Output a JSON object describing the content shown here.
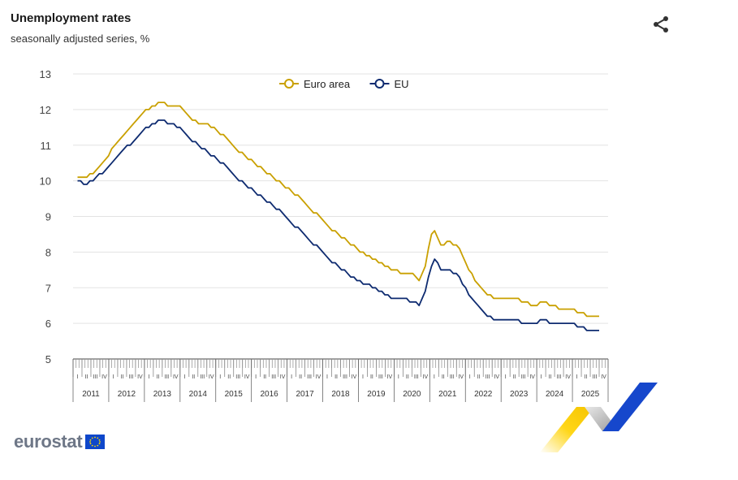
{
  "header": {
    "title": "Unemployment rates",
    "subtitle": "seasonally adjusted series, %"
  },
  "share": {
    "icon": "share-icon"
  },
  "logo": {
    "text": "eurostat"
  },
  "colors": {
    "euro_area": "#c9a000",
    "eu": "#0e2b70",
    "grid": "#e3e3e3",
    "axis": "#666666"
  },
  "chart_data": {
    "type": "line",
    "title": "Unemployment rates",
    "subtitle": "seasonally adjusted series, %",
    "ylim": [
      5,
      13
    ],
    "yticks": [
      5,
      6,
      7,
      8,
      9,
      10,
      11,
      12,
      13
    ],
    "grid": true,
    "legend": "top-center",
    "quarters": [
      "I",
      "II",
      "III",
      "IV"
    ],
    "years": [
      "2011",
      "2012",
      "2013",
      "2014",
      "2015",
      "2016",
      "2017",
      "2018",
      "2019",
      "2020",
      "2021",
      "2022",
      "2023",
      "2024",
      "2025"
    ],
    "x_start": "2011-01",
    "x_end": "2025-01",
    "series": [
      {
        "name": "Euro area",
        "color": "#c9a000",
        "anchors": [
          [
            "2011-01",
            10.1
          ],
          [
            "2011-03",
            10.1
          ],
          [
            "2011-06",
            10.2
          ],
          [
            "2011-10",
            10.6
          ],
          [
            "2012-01",
            11.0
          ],
          [
            "2012-04",
            11.3
          ],
          [
            "2012-07",
            11.6
          ],
          [
            "2012-10",
            11.9
          ],
          [
            "2013-01",
            12.1
          ],
          [
            "2013-04",
            12.2
          ],
          [
            "2013-07",
            12.1
          ],
          [
            "2013-10",
            12.1
          ],
          [
            "2014-01",
            11.8
          ],
          [
            "2014-04",
            11.6
          ],
          [
            "2014-07",
            11.6
          ],
          [
            "2014-10",
            11.4
          ],
          [
            "2015-01",
            11.2
          ],
          [
            "2015-04",
            10.9
          ],
          [
            "2015-07",
            10.7
          ],
          [
            "2015-10",
            10.5
          ],
          [
            "2016-01",
            10.3
          ],
          [
            "2016-04",
            10.1
          ],
          [
            "2016-07",
            9.9
          ],
          [
            "2016-10",
            9.7
          ],
          [
            "2017-01",
            9.5
          ],
          [
            "2017-04",
            9.2
          ],
          [
            "2017-07",
            9.0
          ],
          [
            "2017-10",
            8.7
          ],
          [
            "2018-01",
            8.5
          ],
          [
            "2018-04",
            8.3
          ],
          [
            "2018-07",
            8.1
          ],
          [
            "2018-10",
            7.9
          ],
          [
            "2019-01",
            7.8
          ],
          [
            "2019-04",
            7.6
          ],
          [
            "2019-07",
            7.5
          ],
          [
            "2019-10",
            7.4
          ],
          [
            "2020-01",
            7.4
          ],
          [
            "2020-03",
            7.2
          ],
          [
            "2020-05",
            7.6
          ],
          [
            "2020-07",
            8.5
          ],
          [
            "2020-08",
            8.6
          ],
          [
            "2020-10",
            8.2
          ],
          [
            "2021-01",
            8.3
          ],
          [
            "2021-04",
            8.1
          ],
          [
            "2021-07",
            7.5
          ],
          [
            "2021-10",
            7.1
          ],
          [
            "2022-01",
            6.8
          ],
          [
            "2022-04",
            6.7
          ],
          [
            "2022-07",
            6.7
          ],
          [
            "2022-10",
            6.7
          ],
          [
            "2023-01",
            6.6
          ],
          [
            "2023-04",
            6.5
          ],
          [
            "2023-07",
            6.6
          ],
          [
            "2023-10",
            6.5
          ],
          [
            "2024-01",
            6.4
          ],
          [
            "2024-04",
            6.4
          ],
          [
            "2024-07",
            6.3
          ],
          [
            "2024-10",
            6.2
          ],
          [
            "2025-01",
            6.2
          ]
        ]
      },
      {
        "name": "EU",
        "color": "#0e2b70",
        "anchors": [
          [
            "2011-01",
            10.0
          ],
          [
            "2011-03",
            9.9
          ],
          [
            "2011-06",
            10.0
          ],
          [
            "2011-10",
            10.3
          ],
          [
            "2012-01",
            10.6
          ],
          [
            "2012-04",
            10.9
          ],
          [
            "2012-07",
            11.1
          ],
          [
            "2012-10",
            11.4
          ],
          [
            "2013-01",
            11.6
          ],
          [
            "2013-04",
            11.7
          ],
          [
            "2013-07",
            11.6
          ],
          [
            "2013-10",
            11.5
          ],
          [
            "2014-01",
            11.2
          ],
          [
            "2014-04",
            11.0
          ],
          [
            "2014-07",
            10.8
          ],
          [
            "2014-10",
            10.6
          ],
          [
            "2015-01",
            10.4
          ],
          [
            "2015-04",
            10.1
          ],
          [
            "2015-07",
            9.9
          ],
          [
            "2015-10",
            9.7
          ],
          [
            "2016-01",
            9.5
          ],
          [
            "2016-04",
            9.3
          ],
          [
            "2016-07",
            9.1
          ],
          [
            "2016-10",
            8.8
          ],
          [
            "2017-01",
            8.6
          ],
          [
            "2017-04",
            8.3
          ],
          [
            "2017-07",
            8.1
          ],
          [
            "2017-10",
            7.8
          ],
          [
            "2018-01",
            7.6
          ],
          [
            "2018-04",
            7.4
          ],
          [
            "2018-07",
            7.2
          ],
          [
            "2018-10",
            7.1
          ],
          [
            "2019-01",
            7.0
          ],
          [
            "2019-04",
            6.8
          ],
          [
            "2019-07",
            6.7
          ],
          [
            "2019-10",
            6.7
          ],
          [
            "2020-01",
            6.6
          ],
          [
            "2020-03",
            6.5
          ],
          [
            "2020-05",
            6.9
          ],
          [
            "2020-07",
            7.6
          ],
          [
            "2020-08",
            7.8
          ],
          [
            "2020-10",
            7.5
          ],
          [
            "2021-01",
            7.5
          ],
          [
            "2021-04",
            7.3
          ],
          [
            "2021-07",
            6.8
          ],
          [
            "2021-10",
            6.5
          ],
          [
            "2022-01",
            6.2
          ],
          [
            "2022-04",
            6.1
          ],
          [
            "2022-07",
            6.1
          ],
          [
            "2022-10",
            6.1
          ],
          [
            "2023-01",
            6.0
          ],
          [
            "2023-04",
            6.0
          ],
          [
            "2023-07",
            6.1
          ],
          [
            "2023-10",
            6.0
          ],
          [
            "2024-01",
            6.0
          ],
          [
            "2024-04",
            6.0
          ],
          [
            "2024-07",
            5.9
          ],
          [
            "2024-10",
            5.8
          ],
          [
            "2025-01",
            5.8
          ]
        ]
      }
    ]
  }
}
